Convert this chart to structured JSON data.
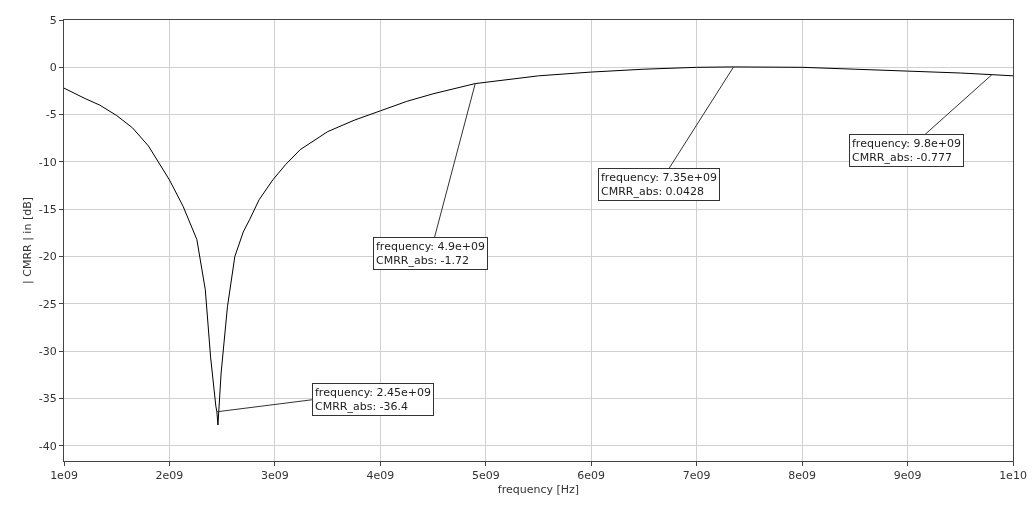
{
  "chart_data": {
    "type": "line",
    "xlabel": "frequency [Hz]",
    "ylabel": "| CMRR | in [dB]",
    "series": [
      {
        "color": "#000000",
        "x": [
          1000000000,
          1200000000,
          1340000000,
          1500000000,
          1650000000,
          1800000000,
          2000000000,
          2130000000,
          2260000000,
          2340000000,
          2390000000,
          2440000000,
          2450000000,
          2460000000,
          2490000000,
          2550000000,
          2620000000,
          2700000000,
          2760000000,
          2850000000,
          2980000000,
          3100000000,
          3240000000,
          3500000000,
          3750000000,
          4000000000,
          4250000000,
          4500000000,
          4900000000,
          5500000000,
          6000000000,
          6500000000,
          7000000000,
          7350000000,
          8000000000,
          8500000000,
          9000000000,
          9500000000,
          9800000000,
          10000000000
        ],
        "values": [
          -2.2,
          -3.3,
          -4.0,
          -5.1,
          -6.4,
          -8.3,
          -11.9,
          -14.7,
          -18.2,
          -23.5,
          -30.6,
          -35.8,
          -36.4,
          -37.8,
          -32.3,
          -25.3,
          -20,
          -17.4,
          -16.1,
          -14,
          -11.9,
          -10.3,
          -8.7,
          -6.8,
          -5.6,
          -4.6,
          -3.6,
          -2.8,
          -1.72,
          -0.9,
          -0.5,
          -0.2,
          0,
          0.0428,
          0,
          -0.2,
          -0.4,
          -0.6,
          -0.777,
          -0.9
        ]
      }
    ],
    "xlim": [
      1000000000,
      10000000000
    ],
    "xticks": [
      {
        "value": 1000000000,
        "label": "1e09"
      },
      {
        "value": 2000000000,
        "label": "2e09"
      },
      {
        "value": 3000000000,
        "label": "3e09"
      },
      {
        "value": 4000000000,
        "label": "4e09"
      },
      {
        "value": 5000000000,
        "label": "5e09"
      },
      {
        "value": 6000000000,
        "label": "6e09"
      },
      {
        "value": 7000000000,
        "label": "7e09"
      },
      {
        "value": 8000000000,
        "label": "8e09"
      },
      {
        "value": 9000000000,
        "label": "9e09"
      },
      {
        "value": 10000000000,
        "label": "1e10"
      }
    ],
    "ylim": [
      -41.6,
      5
    ],
    "yticks": [
      -40,
      -35,
      -30,
      -25,
      -20,
      -15,
      -10,
      -5,
      0,
      5
    ],
    "grid": true,
    "marker": "none",
    "line_style": "solid",
    "annotations": [
      {
        "text": "frequency: 2.45e+09\nCMRR_abs: -36.4",
        "x": 2450000000,
        "y": -36.4
      },
      {
        "text": "frequency: 4.9e+09\nCMRR_abs: -1.72",
        "x": 4900000000,
        "y": -1.72
      },
      {
        "text": "frequency: 7.35e+09\nCMRR_abs: 0.0428",
        "x": 7350000000,
        "y": 0.0428
      },
      {
        "text": "frequency: 9.8e+09\nCMRR_abs: -0.777",
        "x": 9800000000,
        "y": -0.777
      }
    ]
  }
}
